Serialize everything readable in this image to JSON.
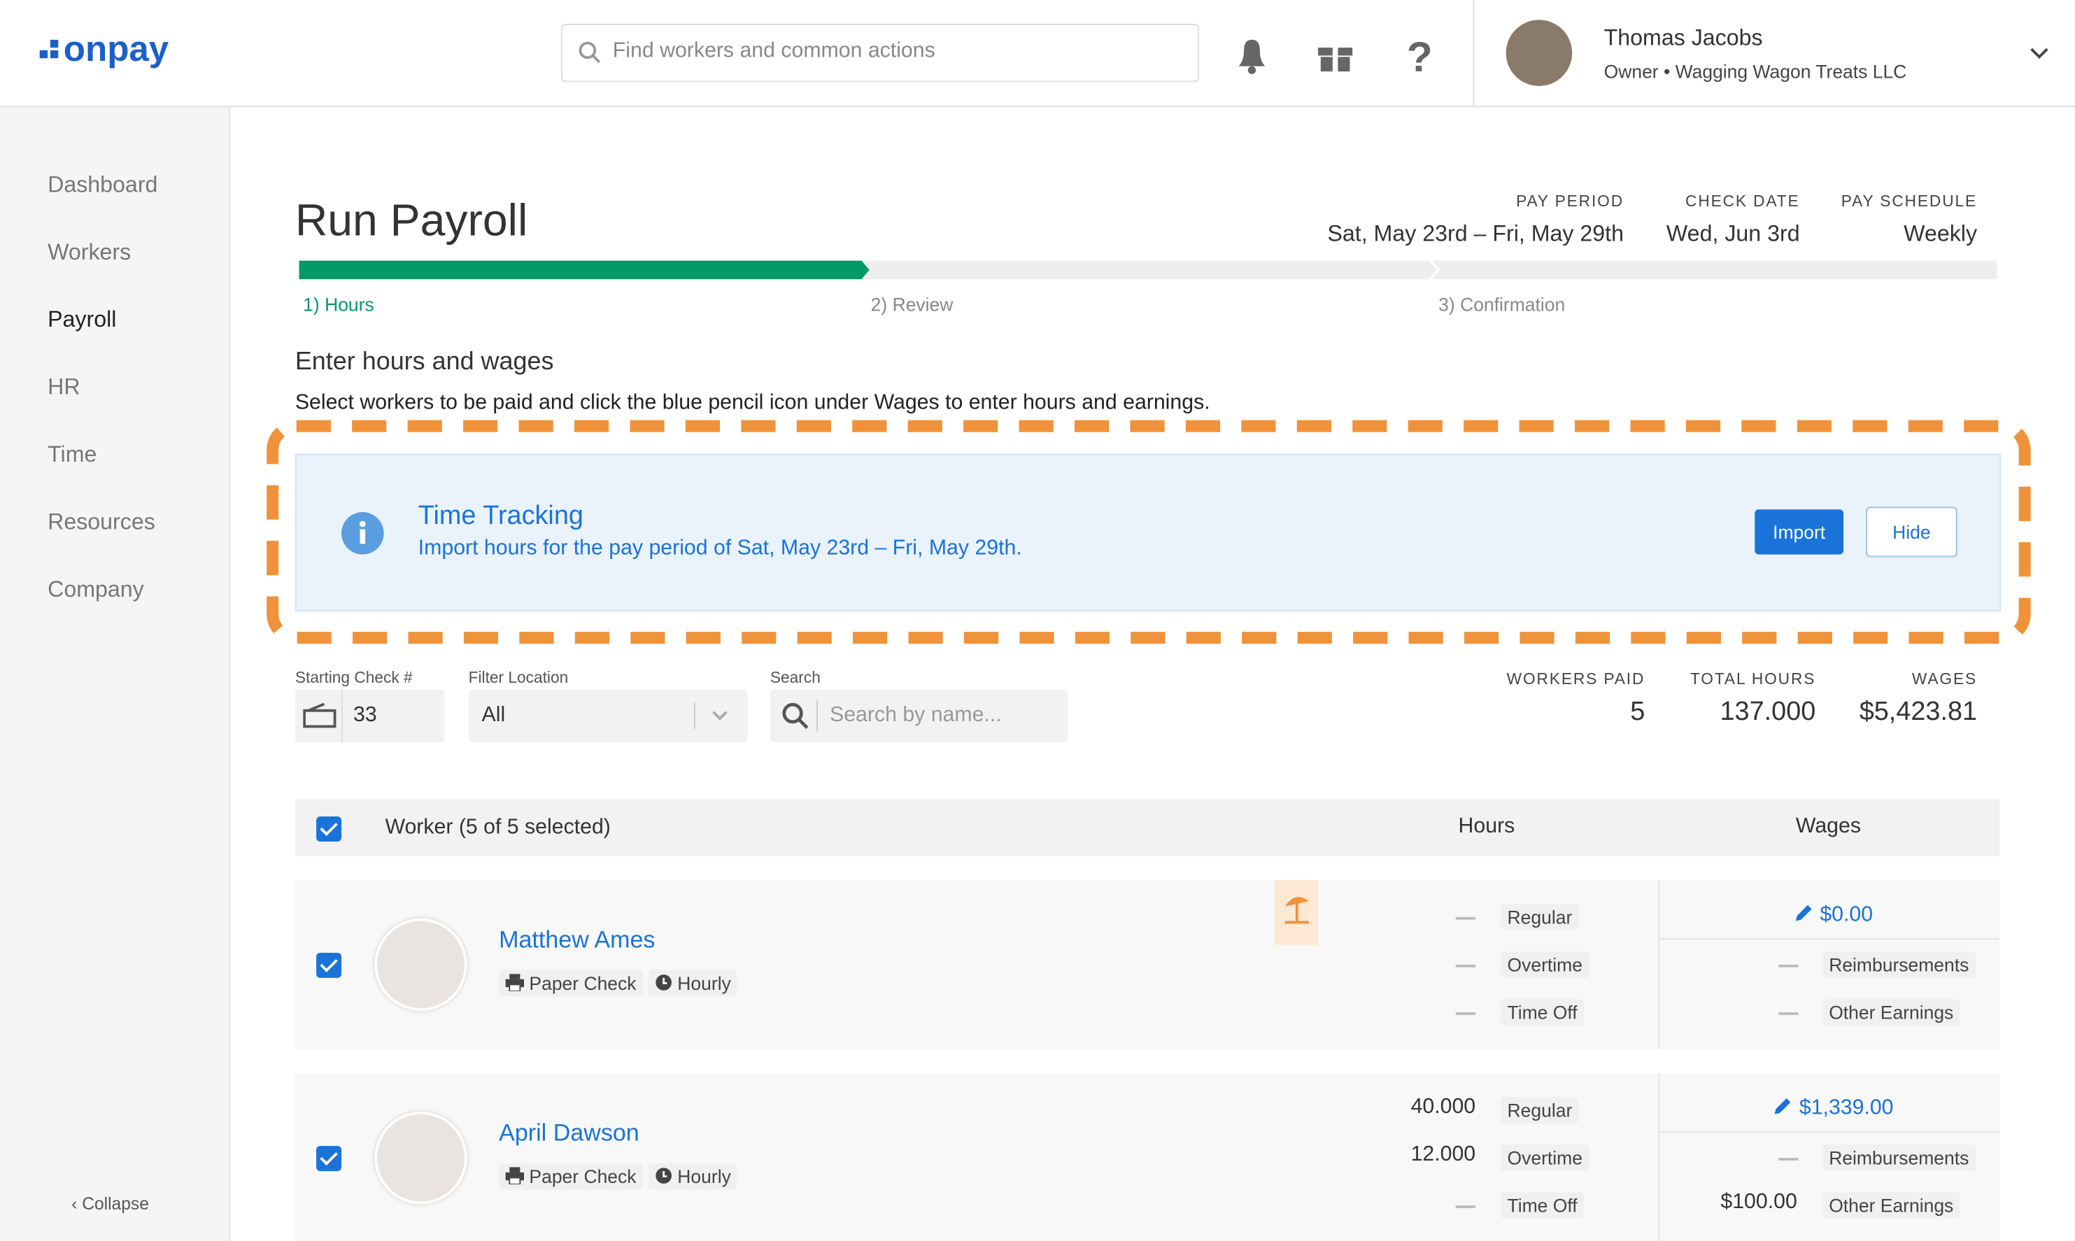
{
  "header": {
    "logo": "onpay",
    "search_placeholder": "Find workers and common actions",
    "user_name": "Thomas Jacobs",
    "user_role": "Owner • Wagging Wagon Treats LLC"
  },
  "sidebar": {
    "items": [
      "Dashboard",
      "Workers",
      "Payroll",
      "HR",
      "Time",
      "Resources",
      "Company"
    ],
    "collapse": "Collapse"
  },
  "page": {
    "title": "Run Payroll",
    "meta": [
      {
        "label": "PAY PERIOD",
        "value": "Sat, May 23rd – Fri, May 29th"
      },
      {
        "label": "CHECK DATE",
        "value": "Wed, Jun 3rd"
      },
      {
        "label": "PAY SCHEDULE",
        "value": "Weekly"
      }
    ],
    "steps": [
      "1) Hours",
      "2) Review",
      "3) Confirmation"
    ],
    "section_title": "Enter hours and wages",
    "instructions": "Select workers to be paid and click the blue pencil icon under Wages to enter hours and earnings."
  },
  "banner": {
    "title": "Time Tracking",
    "text": "Import hours for the pay period of Sat, May 23rd – Fri, May 29th.",
    "import": "Import",
    "hide": "Hide"
  },
  "filters": {
    "check_label": "Starting Check #",
    "check_value": "33",
    "location_label": "Filter Location",
    "location_value": "All",
    "search_label": "Search",
    "search_placeholder": "Search by name..."
  },
  "summary": [
    {
      "label": "WORKERS PAID",
      "value": "5"
    },
    {
      "label": "TOTAL HOURS",
      "value": "137.000"
    },
    {
      "label": "WAGES",
      "value": "$5,423.81"
    }
  ],
  "table": {
    "worker_header": "Worker (5 of 5 selected)",
    "hours_header": "Hours",
    "wages_header": "Wages",
    "rows": [
      {
        "name": "Matthew Ames",
        "payment": "Paper Check",
        "pay_type": "Hourly",
        "hours": [
          {
            "value": null,
            "label": "Regular"
          },
          {
            "value": null,
            "label": "Overtime"
          },
          {
            "value": null,
            "label": "Time Off"
          }
        ],
        "wage": "$0.00",
        "extras": [
          {
            "value": null,
            "label": "Reimbursements"
          },
          {
            "value": null,
            "label": "Other Earnings"
          }
        ]
      },
      {
        "name": "April Dawson",
        "payment": "Paper Check",
        "pay_type": "Hourly",
        "hours": [
          {
            "value": "40.000",
            "label": "Regular"
          },
          {
            "value": "12.000",
            "label": "Overtime"
          },
          {
            "value": null,
            "label": "Time Off"
          }
        ],
        "wage": "$1,339.00",
        "extras": [
          {
            "value": null,
            "label": "Reimbursements"
          },
          {
            "value": "$100.00",
            "label": "Other Earnings"
          }
        ]
      }
    ]
  }
}
